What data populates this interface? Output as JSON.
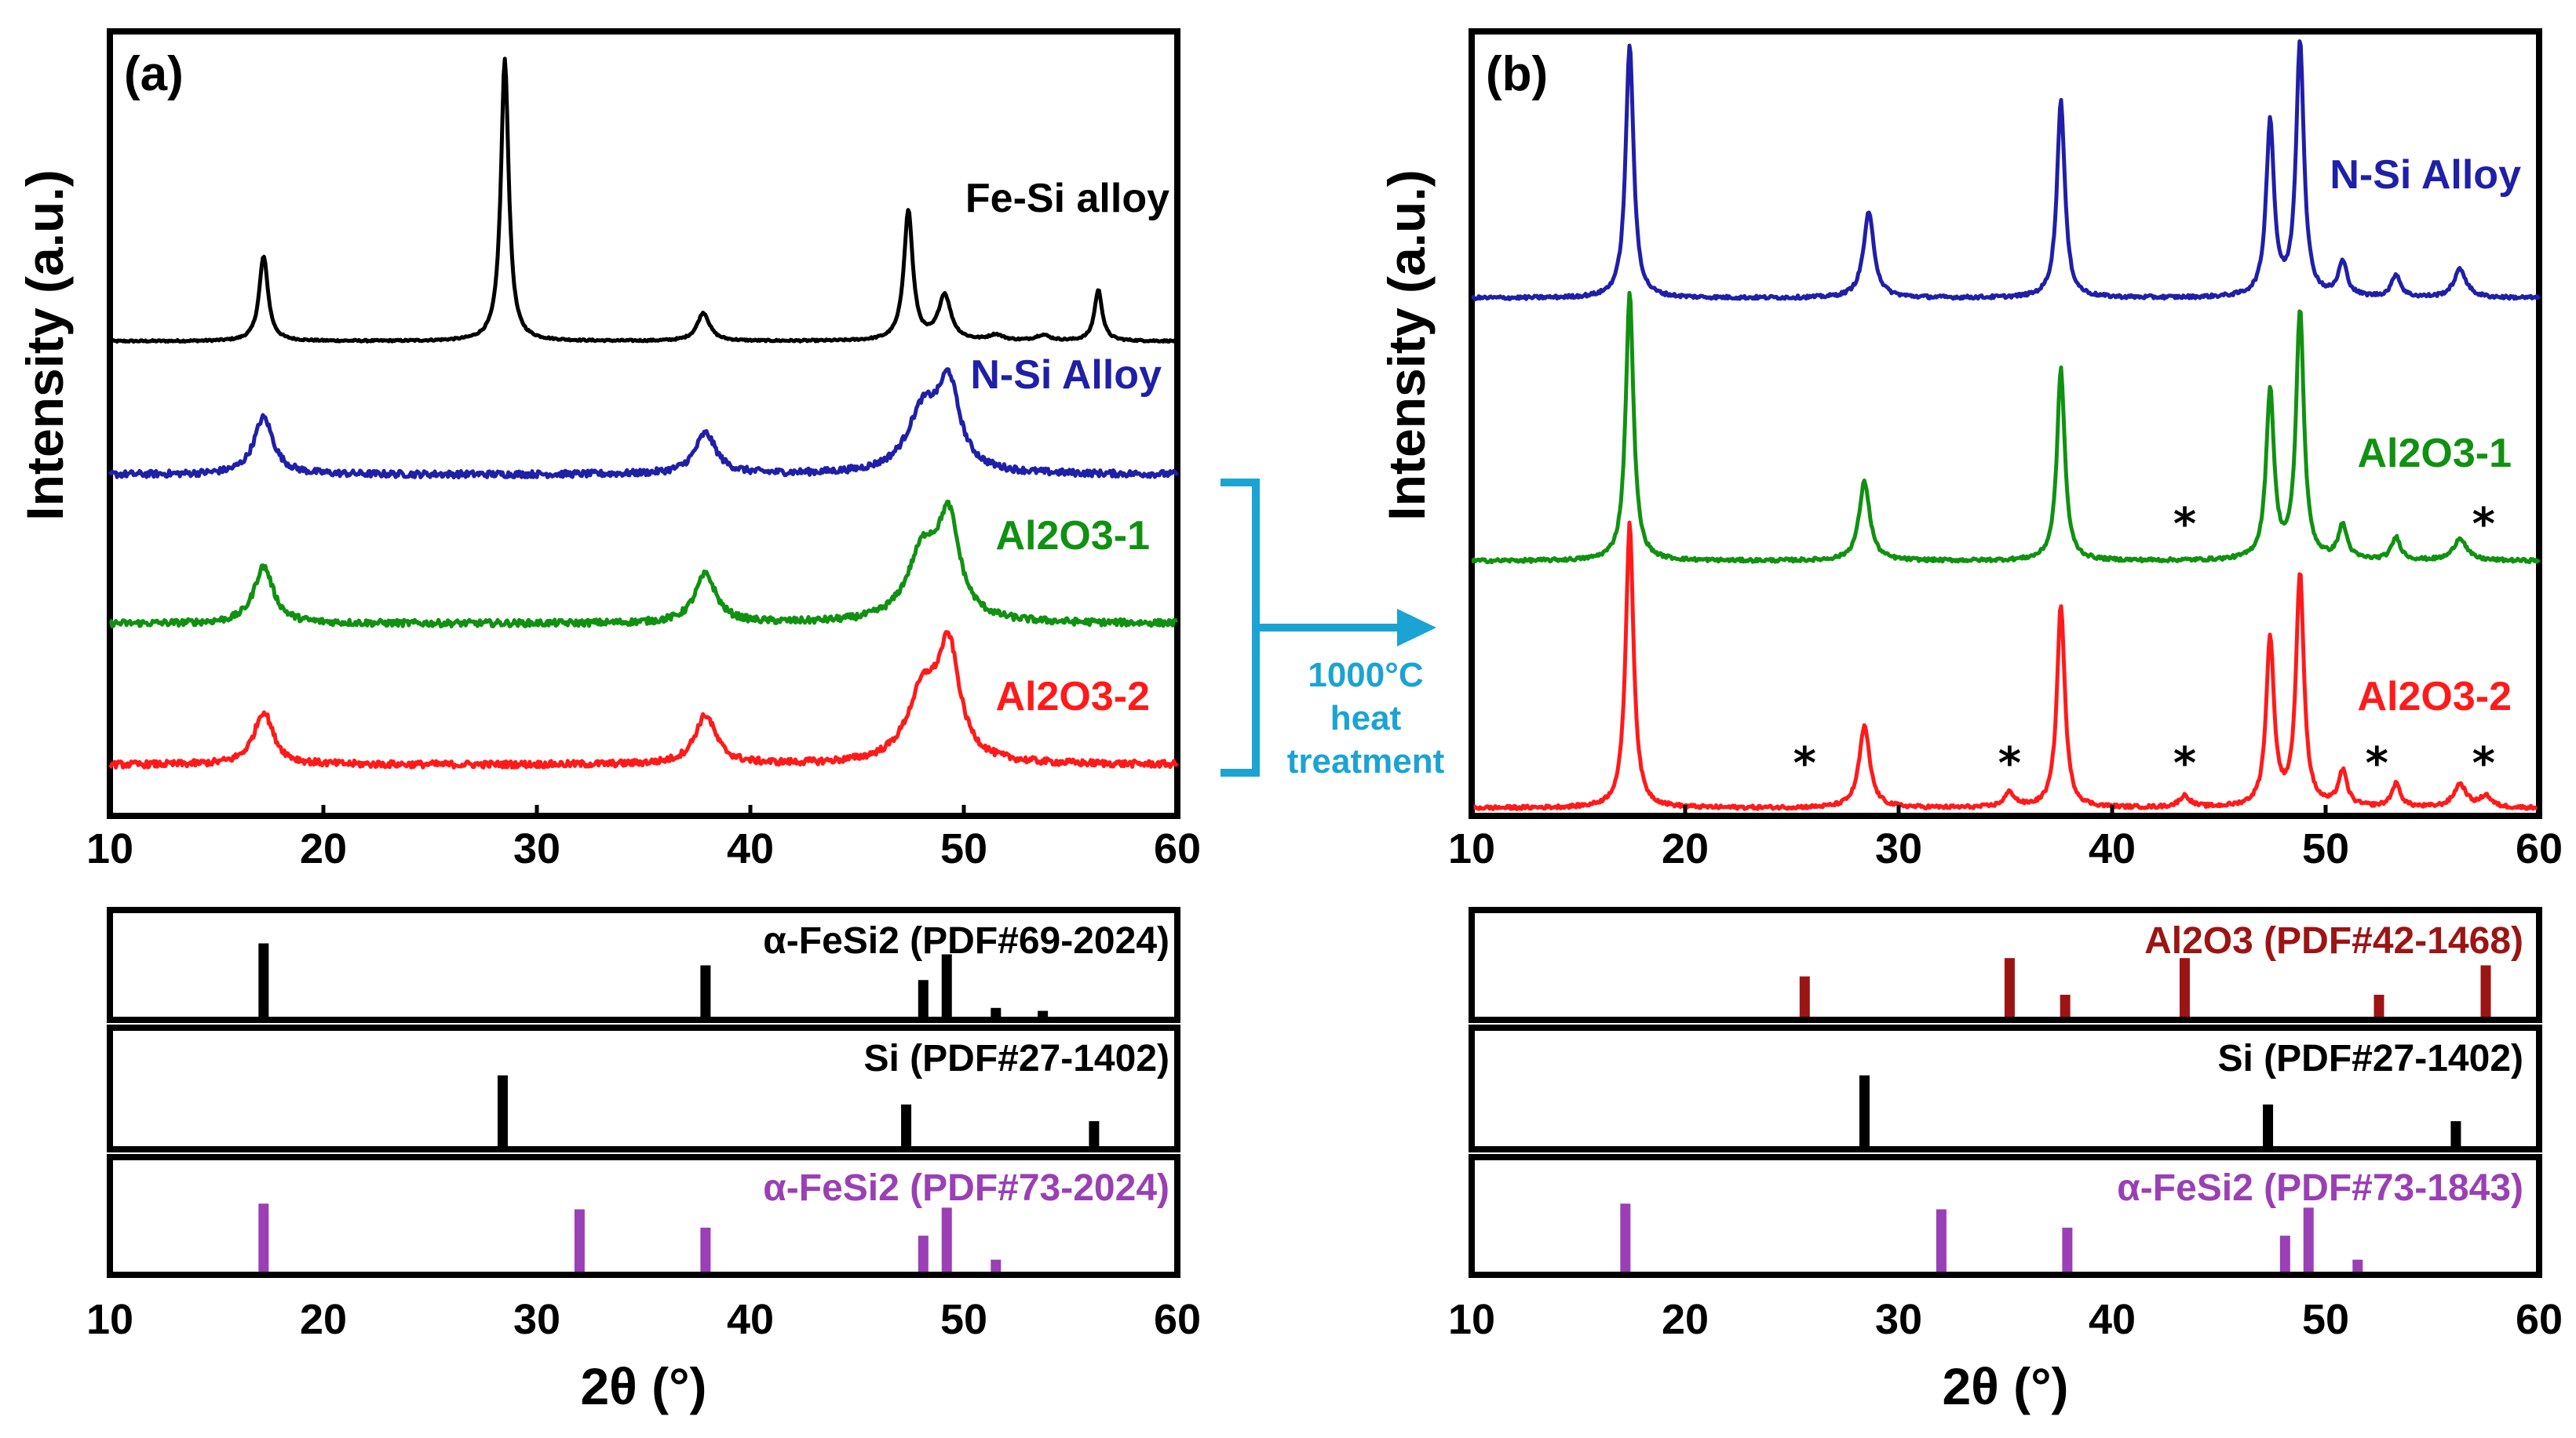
{
  "chart_data": [
    {
      "panel": "(a)",
      "type": "line",
      "title": "",
      "xlabel": "2θ (°)",
      "ylabel": "Intensity (a.u.)",
      "xlim": [
        10,
        60
      ],
      "xticks": [
        "10",
        "20",
        "30",
        "40",
        "50",
        "60"
      ],
      "series": [
        {
          "name": "Fe-Si alloy",
          "color": "#000000",
          "baseline": 0.06,
          "noise": 0.003,
          "peaks": [
            [
              17.2,
              0.3,
              0.25
            ],
            [
              28.5,
              1.0,
              0.22
            ],
            [
              37.8,
              0.1,
              0.35
            ],
            [
              47.4,
              0.46,
              0.25
            ],
            [
              49.1,
              0.16,
              0.35
            ],
            [
              56.3,
              0.18,
              0.22
            ],
            [
              51.5,
              0.02,
              0.4
            ],
            [
              53.7,
              0.02,
              0.4
            ]
          ]
        },
        {
          "name": "N-Si Alloy",
          "color": "#1f1fa8",
          "baseline": 0.08,
          "noise": 0.008,
          "peaks": [
            [
              17.2,
              0.14,
              0.55
            ],
            [
              37.9,
              0.1,
              0.6
            ],
            [
              48.1,
              0.15,
              0.9
            ],
            [
              49.3,
              0.2,
              0.6
            ]
          ]
        },
        {
          "name": "Al2O3-1",
          "color": "#119111",
          "baseline": 0.08,
          "noise": 0.008,
          "peaks": [
            [
              17.2,
              0.14,
              0.55
            ],
            [
              37.9,
              0.12,
              0.6
            ],
            [
              48.1,
              0.17,
              0.9
            ],
            [
              49.3,
              0.23,
              0.6
            ]
          ]
        },
        {
          "name": "Al2O3-2",
          "color": "#ff1a1a",
          "baseline": 0.08,
          "noise": 0.008,
          "peaks": [
            [
              17.2,
              0.13,
              0.55
            ],
            [
              37.9,
              0.12,
              0.6
            ],
            [
              48.1,
              0.17,
              0.9
            ],
            [
              49.3,
              0.26,
              0.6
            ]
          ]
        }
      ],
      "series_labels": [
        {
          "text": "Fe-Si alloy",
          "color": "#000000"
        },
        {
          "text": "N-Si Alloy",
          "color": "#1f1fa8"
        },
        {
          "text": "Al2O3-1",
          "color": "#119111"
        },
        {
          "text": "Al2O3-2",
          "color": "#ff1a1a"
        }
      ],
      "references": [
        {
          "label": "α-FeSi2 (PDF#69-2024)",
          "color": "#000000",
          "sticks": [
            [
              17.2,
              1.0
            ],
            [
              37.9,
              0.7
            ],
            [
              48.1,
              0.5
            ],
            [
              49.2,
              0.85
            ],
            [
              51.5,
              0.12
            ],
            [
              53.7,
              0.08
            ]
          ]
        },
        {
          "label": "Si (PDF#27-1402)",
          "color": "#000000",
          "sticks": [
            [
              28.4,
              0.85
            ],
            [
              47.3,
              0.5
            ],
            [
              56.1,
              0.3
            ]
          ]
        },
        {
          "label": "α-FeSi2 (PDF#73-2024)",
          "color": "#9a3fb5",
          "sticks": [
            [
              17.2,
              0.85
            ],
            [
              32.0,
              0.78
            ],
            [
              37.9,
              0.55
            ],
            [
              48.1,
              0.45
            ],
            [
              49.2,
              0.8
            ],
            [
              51.5,
              0.15
            ]
          ]
        }
      ]
    },
    {
      "panel": "(b)",
      "type": "line",
      "title": "",
      "xlabel": "2θ (°)",
      "ylabel": "Intensity (a.u.)",
      "xlim": [
        10,
        60
      ],
      "xticks": [
        "10",
        "20",
        "30",
        "40",
        "50",
        "60"
      ],
      "series": [
        {
          "name": "N-Si Alloy",
          "color": "#1f1fa8",
          "baseline": 0.1,
          "noise": 0.006,
          "peaks": [
            [
              17.4,
              0.9,
              0.22
            ],
            [
              28.6,
              0.3,
              0.3
            ],
            [
              37.6,
              0.7,
              0.22
            ],
            [
              47.4,
              0.62,
              0.22
            ],
            [
              48.8,
              0.9,
              0.22
            ],
            [
              50.8,
              0.12,
              0.25
            ],
            [
              53.3,
              0.08,
              0.25
            ],
            [
              56.3,
              0.1,
              0.35
            ]
          ]
        },
        {
          "name": "Al2O3-1",
          "color": "#119111",
          "baseline": 0.1,
          "noise": 0.006,
          "peaks": [
            [
              17.4,
              0.95,
              0.22
            ],
            [
              28.4,
              0.28,
              0.3
            ],
            [
              37.6,
              0.68,
              0.22
            ],
            [
              47.4,
              0.6,
              0.22
            ],
            [
              48.8,
              0.88,
              0.22
            ],
            [
              50.8,
              0.12,
              0.25
            ],
            [
              53.3,
              0.08,
              0.25
            ],
            [
              56.3,
              0.08,
              0.35
            ]
          ]
        },
        {
          "name": "Al2O3-2",
          "color": "#ff1a1a",
          "baseline": 0.1,
          "noise": 0.006,
          "peaks": [
            [
              17.4,
              0.98,
              0.22
            ],
            [
              28.4,
              0.28,
              0.3
            ],
            [
              37.6,
              0.7,
              0.22
            ],
            [
              47.4,
              0.58,
              0.22
            ],
            [
              48.8,
              0.8,
              0.22
            ],
            [
              50.8,
              0.12,
              0.25
            ],
            [
              53.3,
              0.08,
              0.25
            ],
            [
              56.3,
              0.08,
              0.35
            ],
            [
              35.2,
              0.05,
              0.3
            ],
            [
              43.4,
              0.04,
              0.3
            ],
            [
              57.5,
              0.04,
              0.3
            ]
          ]
        }
      ],
      "series_labels": [
        {
          "text": "N-Si Alloy",
          "color": "#1f1fa8"
        },
        {
          "text": "Al2O3-1",
          "color": "#119111"
        },
        {
          "text": "Al2O3-2",
          "color": "#ff1a1a"
        }
      ],
      "star_markers": {
        "symbol": "*",
        "Al2O3-1": [
          43.4,
          57.4
        ],
        "Al2O3-2": [
          25.6,
          35.2,
          43.4,
          52.4,
          57.4
        ]
      },
      "references": [
        {
          "label": "Al2O3 (PDF#42-1468)",
          "color": "#9c1414",
          "sticks": [
            [
              25.6,
              0.55
            ],
            [
              35.2,
              0.8
            ],
            [
              37.8,
              0.3
            ],
            [
              43.4,
              0.8
            ],
            [
              52.5,
              0.3
            ],
            [
              57.5,
              0.7
            ]
          ]
        },
        {
          "label": "Si (PDF#27-1402)",
          "color": "#000000",
          "sticks": [
            [
              28.4,
              0.85
            ],
            [
              47.3,
              0.5
            ],
            [
              56.1,
              0.3
            ]
          ]
        },
        {
          "label": "α-FeSi2 (PDF#73-1843)",
          "color": "#9a3fb5",
          "sticks": [
            [
              17.2,
              0.85
            ],
            [
              32.0,
              0.78
            ],
            [
              37.9,
              0.55
            ],
            [
              48.1,
              0.45
            ],
            [
              49.2,
              0.8
            ],
            [
              51.5,
              0.15
            ]
          ]
        }
      ]
    }
  ],
  "arrow": {
    "line1": "1000°C",
    "line2": "heat",
    "line3": "treatment",
    "color": "#1ba3d4"
  }
}
